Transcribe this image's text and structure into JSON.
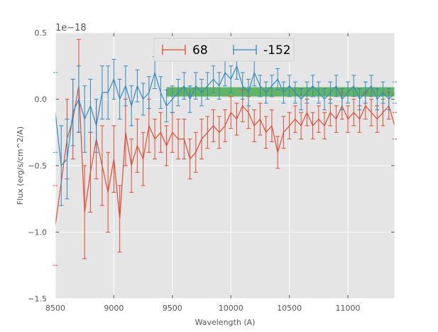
{
  "chart_data": {
    "type": "line",
    "xlabel": "Wavelength (A)",
    "ylabel": "Flux (erg/s/cm^2/A)",
    "offset_text": "1e−18",
    "xlim": [
      8500,
      11400
    ],
    "ylim": [
      -1.5,
      0.5
    ],
    "xticks": [
      8500,
      9000,
      9500,
      10000,
      10500,
      11000
    ],
    "xtick_labels": [
      "8500",
      "9000",
      "9500",
      "10000",
      "10500",
      "11000"
    ],
    "yticks": [
      -1.5,
      -1.0,
      -0.5,
      0.0,
      0.5
    ],
    "ytick_labels": [
      "−1.5",
      "−1.0",
      "−0.5",
      "0.0",
      "0.5"
    ],
    "grid": true,
    "legend_position": "top-center",
    "band": {
      "x_range": [
        9450,
        11400
      ],
      "y_range": [
        0.02,
        0.09
      ],
      "color": "#2ca02c"
    },
    "series": [
      {
        "name": "68",
        "color": "#e24a33",
        "x": [
          8500,
          8600,
          8650,
          8700,
          8750,
          8800,
          8850,
          8900,
          8950,
          9000,
          9050,
          9100,
          9150,
          9200,
          9250,
          9300,
          9350,
          9400,
          9450,
          9500,
          9550,
          9600,
          9650,
          9700,
          9750,
          9800,
          9850,
          9900,
          9950,
          10000,
          10050,
          10100,
          10150,
          10200,
          10250,
          10300,
          10350,
          10400,
          10450,
          10500,
          10550,
          10600,
          10650,
          10700,
          10750,
          10800,
          10850,
          10900,
          10950,
          11000,
          11050,
          11100,
          11150,
          11200,
          11250,
          11300,
          11350,
          11400
        ],
        "y": [
          -0.95,
          -0.3,
          -0.15,
          0.1,
          -0.85,
          -0.55,
          -0.3,
          -0.5,
          -0.7,
          -0.45,
          -0.9,
          -0.25,
          -0.5,
          -0.35,
          -0.45,
          -0.2,
          -0.3,
          -0.25,
          -0.35,
          -0.25,
          -0.3,
          -0.3,
          -0.45,
          -0.4,
          -0.3,
          -0.25,
          -0.2,
          -0.25,
          -0.2,
          -0.1,
          -0.15,
          -0.05,
          -0.1,
          -0.2,
          -0.15,
          -0.25,
          -0.2,
          -0.4,
          -0.25,
          -0.2,
          -0.15,
          -0.2,
          -0.1,
          -0.2,
          -0.15,
          -0.2,
          -0.1,
          -0.15,
          -0.05,
          -0.15,
          -0.1,
          -0.15,
          -0.05,
          -0.1,
          -0.15,
          -0.1,
          -0.05,
          -0.2
        ],
        "err": [
          0.3,
          0.3,
          0.3,
          0.35,
          0.35,
          0.3,
          0.3,
          0.3,
          0.3,
          0.25,
          0.25,
          0.25,
          0.2,
          0.2,
          0.2,
          0.2,
          0.15,
          0.15,
          0.15,
          0.15,
          0.15,
          0.15,
          0.15,
          0.15,
          0.15,
          0.12,
          0.12,
          0.12,
          0.12,
          0.12,
          0.12,
          0.12,
          0.12,
          0.12,
          0.12,
          0.12,
          0.12,
          0.12,
          0.12,
          0.1,
          0.1,
          0.1,
          0.1,
          0.1,
          0.1,
          0.1,
          0.1,
          0.1,
          0.1,
          0.1,
          0.1,
          0.1,
          0.1,
          0.1,
          0.1,
          0.1,
          0.1,
          0.1
        ]
      },
      {
        "name": "-152",
        "color": "#348abd",
        "x": [
          8500,
          8550,
          8600,
          8650,
          8700,
          8750,
          8800,
          8850,
          8900,
          8950,
          9000,
          9050,
          9100,
          9150,
          9200,
          9250,
          9300,
          9350,
          9400,
          9450,
          9500,
          9550,
          9600,
          9650,
          9700,
          9750,
          9800,
          9850,
          9900,
          9950,
          10000,
          10050,
          10100,
          10150,
          10200,
          10250,
          10300,
          10350,
          10400,
          10450,
          10500,
          10550,
          10600,
          10650,
          10700,
          10750,
          10800,
          10850,
          10900,
          10950,
          11000,
          11050,
          11100,
          11150,
          11200,
          11250,
          11300,
          11350,
          11400
        ],
        "y": [
          -0.1,
          -0.5,
          -0.45,
          -0.1,
          0.0,
          -0.15,
          -0.05,
          -0.2,
          0.05,
          0.05,
          0.15,
          0.0,
          0.1,
          -0.05,
          0.1,
          0.0,
          0.05,
          0.2,
          0.05,
          -0.05,
          0.0,
          0.05,
          0.1,
          0.0,
          0.1,
          0.05,
          0.1,
          0.15,
          0.1,
          0.2,
          0.15,
          0.25,
          0.1,
          0.05,
          0.2,
          0.1,
          0.05,
          0.1,
          0.15,
          0.05,
          0.1,
          0.05,
          0.0,
          0.05,
          0.1,
          0.05,
          0.0,
          0.05,
          0.1,
          0.0,
          0.05,
          0.1,
          0.0,
          0.05,
          0.1,
          0.0,
          0.05,
          0.0,
          0.05
        ],
        "err": [
          0.3,
          0.3,
          0.3,
          0.25,
          0.25,
          0.25,
          0.2,
          0.2,
          0.2,
          0.2,
          0.15,
          0.15,
          0.15,
          0.15,
          0.12,
          0.12,
          0.12,
          0.12,
          0.12,
          0.12,
          0.1,
          0.1,
          0.1,
          0.1,
          0.1,
          0.1,
          0.1,
          0.1,
          0.1,
          0.1,
          0.1,
          0.1,
          0.1,
          0.1,
          0.1,
          0.08,
          0.08,
          0.08,
          0.08,
          0.08,
          0.08,
          0.08,
          0.08,
          0.08,
          0.08,
          0.08,
          0.08,
          0.08,
          0.08,
          0.08,
          0.08,
          0.08,
          0.08,
          0.08,
          0.08,
          0.08,
          0.08,
          0.08,
          0.08
        ]
      }
    ]
  },
  "colors": {
    "plot_background": "#e5e5e5",
    "grid": "#ffffff",
    "legend_background": "#e5e5e5"
  }
}
